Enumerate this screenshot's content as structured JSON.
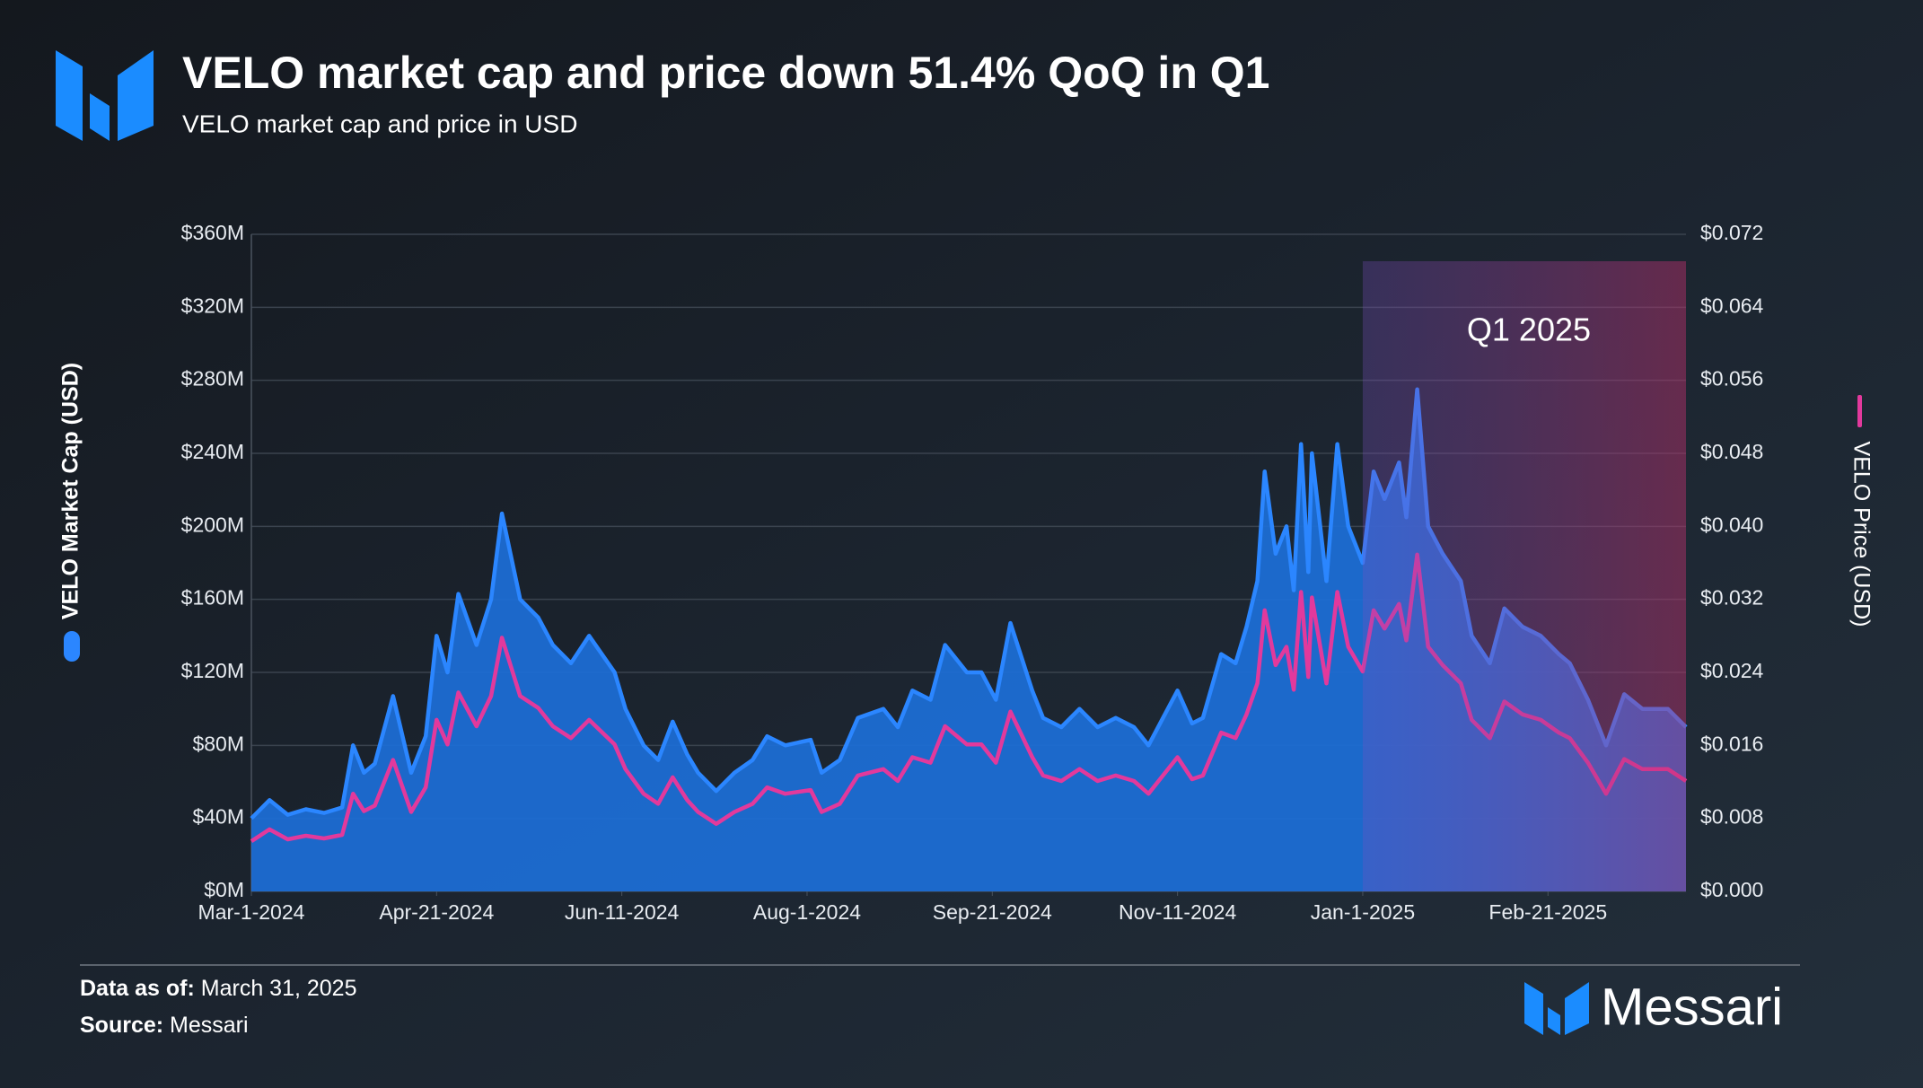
{
  "chart_data": {
    "type": "area-line",
    "title": "VELO market cap and price down 51.4% QoQ in Q1",
    "subtitle": "VELO market cap and price in USD",
    "x": [
      "2024-03-01",
      "2024-03-06",
      "2024-03-11",
      "2024-03-16",
      "2024-03-21",
      "2024-03-26",
      "2024-03-29",
      "2024-04-01",
      "2024-04-04",
      "2024-04-09",
      "2024-04-14",
      "2024-04-18",
      "2024-04-21",
      "2024-04-24",
      "2024-04-27",
      "2024-05-02",
      "2024-05-06",
      "2024-05-09",
      "2024-05-14",
      "2024-05-19",
      "2024-05-23",
      "2024-05-28",
      "2024-06-02",
      "2024-06-09",
      "2024-06-12",
      "2024-06-17",
      "2024-06-21",
      "2024-06-25",
      "2024-06-29",
      "2024-07-02",
      "2024-07-07",
      "2024-07-12",
      "2024-07-17",
      "2024-07-21",
      "2024-07-26",
      "2024-08-02",
      "2024-08-05",
      "2024-08-10",
      "2024-08-15",
      "2024-08-22",
      "2024-08-26",
      "2024-08-30",
      "2024-09-04",
      "2024-09-08",
      "2024-09-14",
      "2024-09-18",
      "2024-09-22",
      "2024-09-26",
      "2024-10-02",
      "2024-10-05",
      "2024-10-10",
      "2024-10-15",
      "2024-10-20",
      "2024-10-25",
      "2024-10-30",
      "2024-11-03",
      "2024-11-07",
      "2024-11-11",
      "2024-11-15",
      "2024-11-18",
      "2024-11-23",
      "2024-11-27",
      "2024-11-30",
      "2024-12-03",
      "2024-12-05",
      "2024-12-08",
      "2024-12-11",
      "2024-12-13",
      "2024-12-15",
      "2024-12-17",
      "2024-12-18",
      "2024-12-22",
      "2024-12-25",
      "2024-12-28",
      "2025-01-01",
      "2025-01-04",
      "2025-01-07",
      "2025-01-11",
      "2025-01-13",
      "2025-01-16",
      "2025-01-19",
      "2025-01-23",
      "2025-01-28",
      "2025-01-31",
      "2025-02-05",
      "2025-02-09",
      "2025-02-14",
      "2025-02-19",
      "2025-02-24",
      "2025-02-27",
      "2025-03-04",
      "2025-03-09",
      "2025-03-14",
      "2025-03-19",
      "2025-03-26",
      "2025-03-31"
    ],
    "series": [
      {
        "name": "VELO Market Cap (USD)",
        "color": "#2b86ff",
        "fill": "#1c6fd8",
        "axis": "y",
        "values": [
          40000000,
          50000000,
          42000000,
          45000000,
          43000000,
          46000000,
          80000000,
          65000000,
          70000000,
          107000000,
          65000000,
          85000000,
          140000000,
          120000000,
          163000000,
          135000000,
          160000000,
          207000000,
          160000000,
          150000000,
          135000000,
          125000000,
          140000000,
          120000000,
          100000000,
          80000000,
          72000000,
          93000000,
          75000000,
          65000000,
          55000000,
          65000000,
          72000000,
          85000000,
          80000000,
          83000000,
          65000000,
          72000000,
          95000000,
          100000000,
          90000000,
          110000000,
          105000000,
          135000000,
          120000000,
          120000000,
          105000000,
          147000000,
          110000000,
          95000000,
          90000000,
          100000000,
          90000000,
          95000000,
          90000000,
          80000000,
          95000000,
          110000000,
          92000000,
          95000000,
          130000000,
          125000000,
          145000000,
          170000000,
          230000000,
          185000000,
          200000000,
          165000000,
          245000000,
          175000000,
          240000000,
          170000000,
          245000000,
          200000000,
          180000000,
          230000000,
          215000000,
          235000000,
          205000000,
          275000000,
          200000000,
          185000000,
          170000000,
          140000000,
          125000000,
          155000000,
          145000000,
          140000000,
          130000000,
          125000000,
          105000000,
          80000000,
          108000000,
          100000000,
          100000000,
          90000000
        ]
      },
      {
        "name": "VELO Price (USD)",
        "color": "#e2399c",
        "axis": "y2",
        "values": [
          0.0055,
          0.0068,
          0.0057,
          0.0061,
          0.0058,
          0.0062,
          0.0107,
          0.0088,
          0.0094,
          0.0144,
          0.0087,
          0.0114,
          0.0188,
          0.0161,
          0.0218,
          0.0181,
          0.0214,
          0.0278,
          0.0214,
          0.0201,
          0.0181,
          0.0168,
          0.0188,
          0.0161,
          0.0134,
          0.0107,
          0.0096,
          0.0125,
          0.01,
          0.0087,
          0.0074,
          0.0087,
          0.0096,
          0.0114,
          0.0107,
          0.0111,
          0.0087,
          0.0096,
          0.0127,
          0.0134,
          0.0121,
          0.0147,
          0.0141,
          0.0181,
          0.0161,
          0.0161,
          0.0141,
          0.0197,
          0.0147,
          0.0127,
          0.0121,
          0.0134,
          0.0121,
          0.0127,
          0.0121,
          0.0107,
          0.0127,
          0.0147,
          0.0123,
          0.0127,
          0.0174,
          0.0168,
          0.0194,
          0.0228,
          0.0308,
          0.0248,
          0.0268,
          0.0221,
          0.0328,
          0.0235,
          0.0322,
          0.0228,
          0.0328,
          0.0268,
          0.0241,
          0.0308,
          0.0288,
          0.0315,
          0.0275,
          0.0369,
          0.0268,
          0.0248,
          0.0228,
          0.0188,
          0.0168,
          0.0208,
          0.0194,
          0.0188,
          0.0174,
          0.0168,
          0.0141,
          0.0107,
          0.0145,
          0.0134,
          0.0134,
          0.0121
        ]
      }
    ],
    "xlim": [
      "2024-03-01",
      "2025-03-31"
    ],
    "xticks": [
      {
        "value": "2024-03-01",
        "label": "Mar-1-2024"
      },
      {
        "value": "2024-04-21",
        "label": "Apr-21-2024"
      },
      {
        "value": "2024-06-11",
        "label": "Jun-11-2024"
      },
      {
        "value": "2024-08-01",
        "label": "Aug-1-2024"
      },
      {
        "value": "2024-09-21",
        "label": "Sep-21-2024"
      },
      {
        "value": "2024-11-11",
        "label": "Nov-11-2024"
      },
      {
        "value": "2025-01-01",
        "label": "Jan-1-2025"
      },
      {
        "value": "2025-02-21",
        "label": "Feb-21-2025"
      }
    ],
    "ylim": [
      0,
      360000000
    ],
    "yticks": [
      {
        "value": 0,
        "label": "$0M"
      },
      {
        "value": 40000000,
        "label": "$40M"
      },
      {
        "value": 80000000,
        "label": "$80M"
      },
      {
        "value": 120000000,
        "label": "$120M"
      },
      {
        "value": 160000000,
        "label": "$160M"
      },
      {
        "value": 200000000,
        "label": "$200M"
      },
      {
        "value": 240000000,
        "label": "$240M"
      },
      {
        "value": 280000000,
        "label": "$280M"
      },
      {
        "value": 320000000,
        "label": "$320M"
      },
      {
        "value": 360000000,
        "label": "$360M"
      }
    ],
    "y2lim": [
      0,
      0.072
    ],
    "y2ticks": [
      {
        "value": 0,
        "label": "$0.000"
      },
      {
        "value": 0.008,
        "label": "$0.008"
      },
      {
        "value": 0.016,
        "label": "$0.016"
      },
      {
        "value": 0.024,
        "label": "$0.024"
      },
      {
        "value": 0.032,
        "label": "$0.032"
      },
      {
        "value": 0.04,
        "label": "$0.040"
      },
      {
        "value": 0.048,
        "label": "$0.048"
      },
      {
        "value": 0.056,
        "label": "$0.056"
      },
      {
        "value": 0.064,
        "label": "$0.064"
      },
      {
        "value": 0.072,
        "label": "$0.072"
      }
    ],
    "grid": true,
    "annotations": [
      {
        "text": "Q1 2025",
        "x_start": "2025-01-01",
        "x_end": "2025-03-31"
      }
    ]
  },
  "footer": {
    "data_as_of_label": "Data as of:",
    "data_as_of": "March 31, 2025",
    "source_label": "Source:",
    "source": "Messari",
    "brand": "Messari"
  }
}
